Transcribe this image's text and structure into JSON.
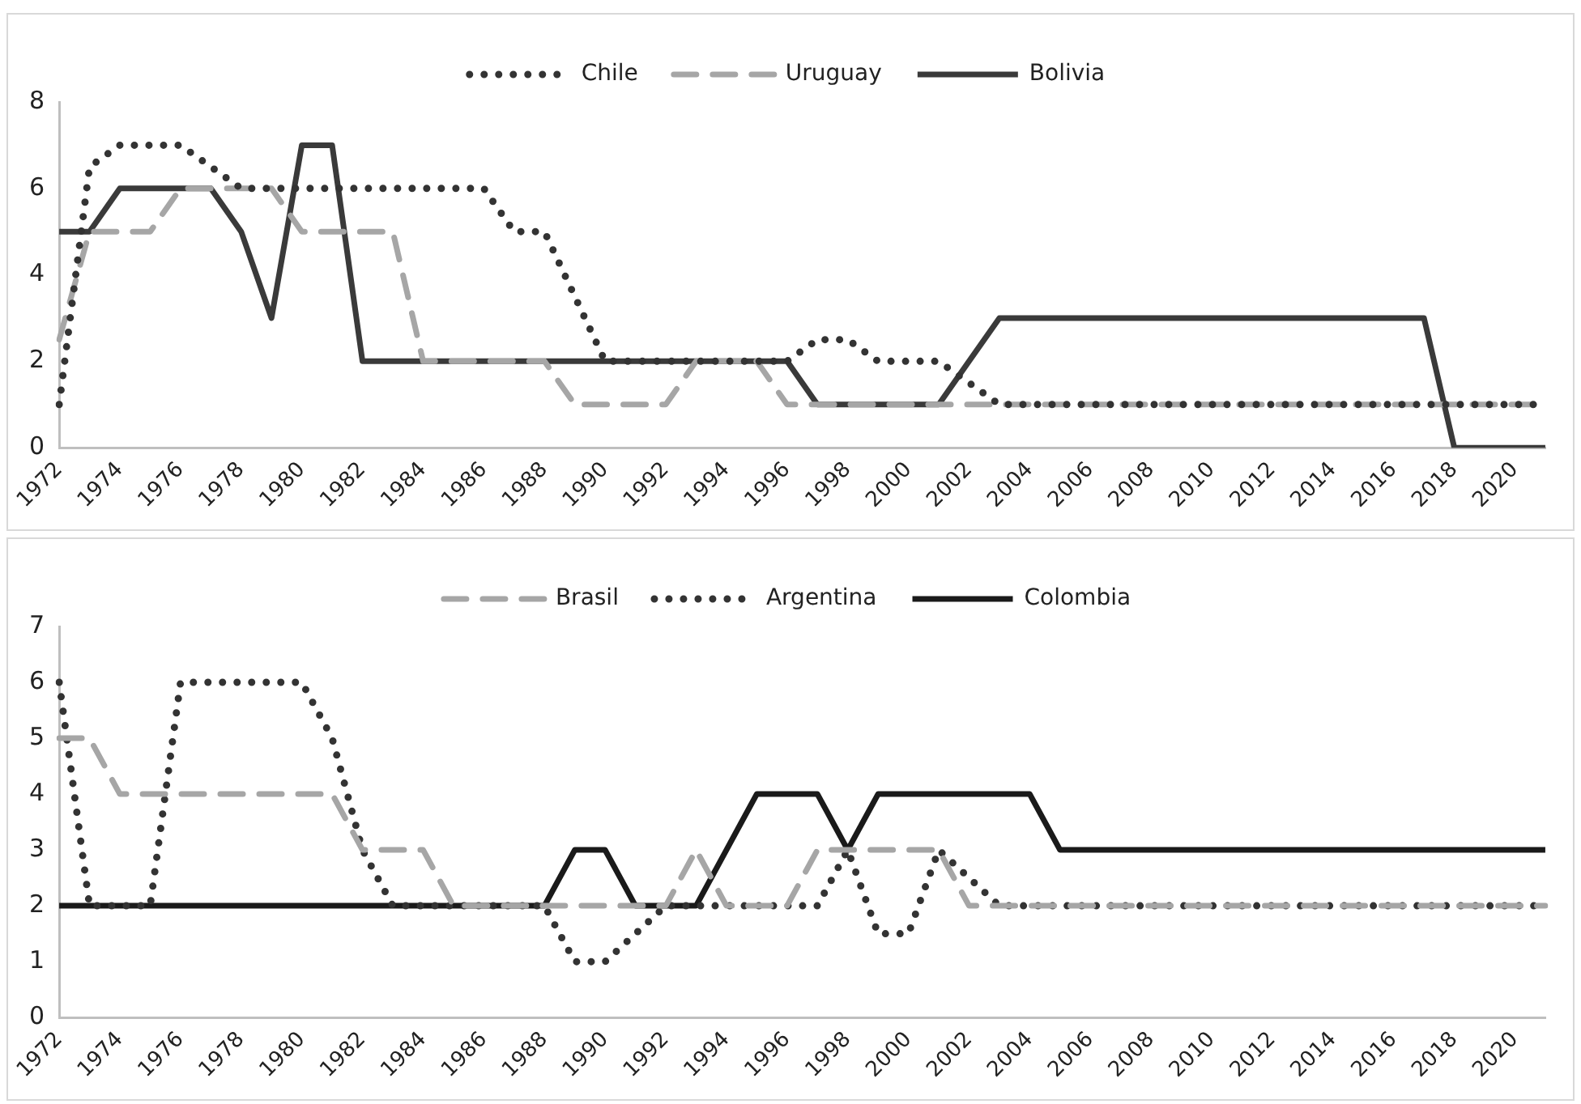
{
  "chart_data": [
    {
      "type": "line",
      "categories": [
        "1972",
        null,
        "1974",
        null,
        "1976",
        null,
        "1978",
        null,
        "1980",
        null,
        "1982",
        null,
        "1984",
        null,
        "1986",
        null,
        "1988",
        null,
        "1990",
        null,
        "1992",
        null,
        "1994",
        null,
        "1996",
        null,
        "1998",
        null,
        "2000",
        null,
        "2002",
        null,
        "2004",
        null,
        "2006",
        null,
        "2008",
        null,
        "2010",
        null,
        "2012",
        null,
        "2014",
        null,
        "2016",
        null,
        "2018",
        null,
        "2020",
        null
      ],
      "series": [
        {
          "name": "Chile",
          "color": "#333333",
          "line_style": "dotted",
          "values": [
            1,
            6.5,
            7,
            7,
            7,
            6.5,
            6,
            6,
            6,
            6,
            6,
            6,
            6,
            6,
            6,
            5,
            5,
            3.5,
            2,
            2,
            2,
            2,
            2,
            2,
            2,
            2.5,
            2.5,
            2,
            2,
            2,
            1.5,
            1,
            1,
            1,
            1,
            1,
            1,
            1,
            1,
            1,
            1,
            1,
            1,
            1,
            1,
            1,
            1,
            1,
            1,
            1
          ]
        },
        {
          "name": "Uruguay",
          "color": "#a6a6a6",
          "line_style": "dashed",
          "values": [
            2.5,
            5,
            5,
            5,
            6,
            6,
            6,
            6,
            5,
            5,
            5,
            5,
            2,
            2,
            2,
            2,
            2,
            1,
            1,
            1,
            1,
            2,
            2,
            2,
            1,
            1,
            1,
            1,
            1,
            1,
            1,
            1,
            1,
            1,
            1,
            1,
            1,
            1,
            1,
            1,
            1,
            1,
            1,
            1,
            1,
            1,
            1,
            1,
            1,
            1
          ]
        },
        {
          "name": "Bolivia",
          "color": "#3a3a3a",
          "line_style": "solid",
          "values": [
            5,
            5,
            6,
            6,
            6,
            6,
            5,
            3,
            7,
            7,
            2,
            2,
            2,
            2,
            2,
            2,
            2,
            2,
            2,
            2,
            2,
            2,
            2,
            2,
            2,
            1,
            1,
            1,
            1,
            1,
            2,
            3,
            3,
            3,
            3,
            3,
            3,
            3,
            3,
            3,
            3,
            3,
            3,
            3,
            3,
            3,
            0,
            0,
            0,
            0
          ]
        }
      ],
      "ylim": [
        0,
        8
      ],
      "yticks": [
        0,
        2,
        4,
        6,
        8
      ],
      "grid": false,
      "legend": "top",
      "marker": "none"
    },
    {
      "type": "line",
      "categories": [
        "1972",
        null,
        "1974",
        null,
        "1976",
        null,
        "1978",
        null,
        "1980",
        null,
        "1982",
        null,
        "1984",
        null,
        "1986",
        null,
        "1988",
        null,
        "1990",
        null,
        "1992",
        null,
        "1994",
        null,
        "1996",
        null,
        "1998",
        null,
        "2000",
        null,
        "2002",
        null,
        "2004",
        null,
        "2006",
        null,
        "2008",
        null,
        "2010",
        null,
        "2012",
        null,
        "2014",
        null,
        "2016",
        null,
        "2018",
        null,
        "2020",
        null
      ],
      "series": [
        {
          "name": "Brasil",
          "color": "#a6a6a6",
          "line_style": "dashed",
          "values": [
            5,
            5,
            4,
            4,
            4,
            4,
            4,
            4,
            4,
            4,
            3,
            3,
            3,
            2,
            2,
            2,
            2,
            2,
            2,
            2,
            2,
            3,
            2,
            2,
            2,
            3,
            3,
            3,
            3,
            3,
            2,
            2,
            2,
            2,
            2,
            2,
            2,
            2,
            2,
            2,
            2,
            2,
            2,
            2,
            2,
            2,
            2,
            2,
            2,
            2
          ]
        },
        {
          "name": "Argentina",
          "color": "#333333",
          "line_style": "dotted",
          "values": [
            6,
            2,
            2,
            2,
            6,
            6,
            6,
            6,
            6,
            5,
            3,
            2,
            2,
            2,
            2,
            2,
            2,
            1,
            1,
            1.5,
            2,
            2,
            2,
            2,
            2,
            2,
            3,
            1.5,
            1.5,
            3,
            2.5,
            2,
            2,
            2,
            2,
            2,
            2,
            2,
            2,
            2,
            2,
            2,
            2,
            2,
            2,
            2,
            2,
            2,
            2,
            2
          ]
        },
        {
          "name": "Colombia",
          "color": "#1a1a1a",
          "line_style": "solid",
          "values": [
            2,
            2,
            2,
            2,
            2,
            2,
            2,
            2,
            2,
            2,
            2,
            2,
            2,
            2,
            2,
            2,
            2,
            3,
            3,
            2,
            2,
            2,
            3,
            4,
            4,
            4,
            3,
            4,
            4,
            4,
            4,
            4,
            4,
            3,
            3,
            3,
            3,
            3,
            3,
            3,
            3,
            3,
            3,
            3,
            3,
            3,
            3,
            3,
            3,
            3
          ]
        }
      ],
      "ylim": [
        0,
        7
      ],
      "yticks": [
        0,
        1,
        2,
        3,
        4,
        5,
        6,
        7
      ],
      "grid": false,
      "legend": "top",
      "marker": "none"
    }
  ]
}
